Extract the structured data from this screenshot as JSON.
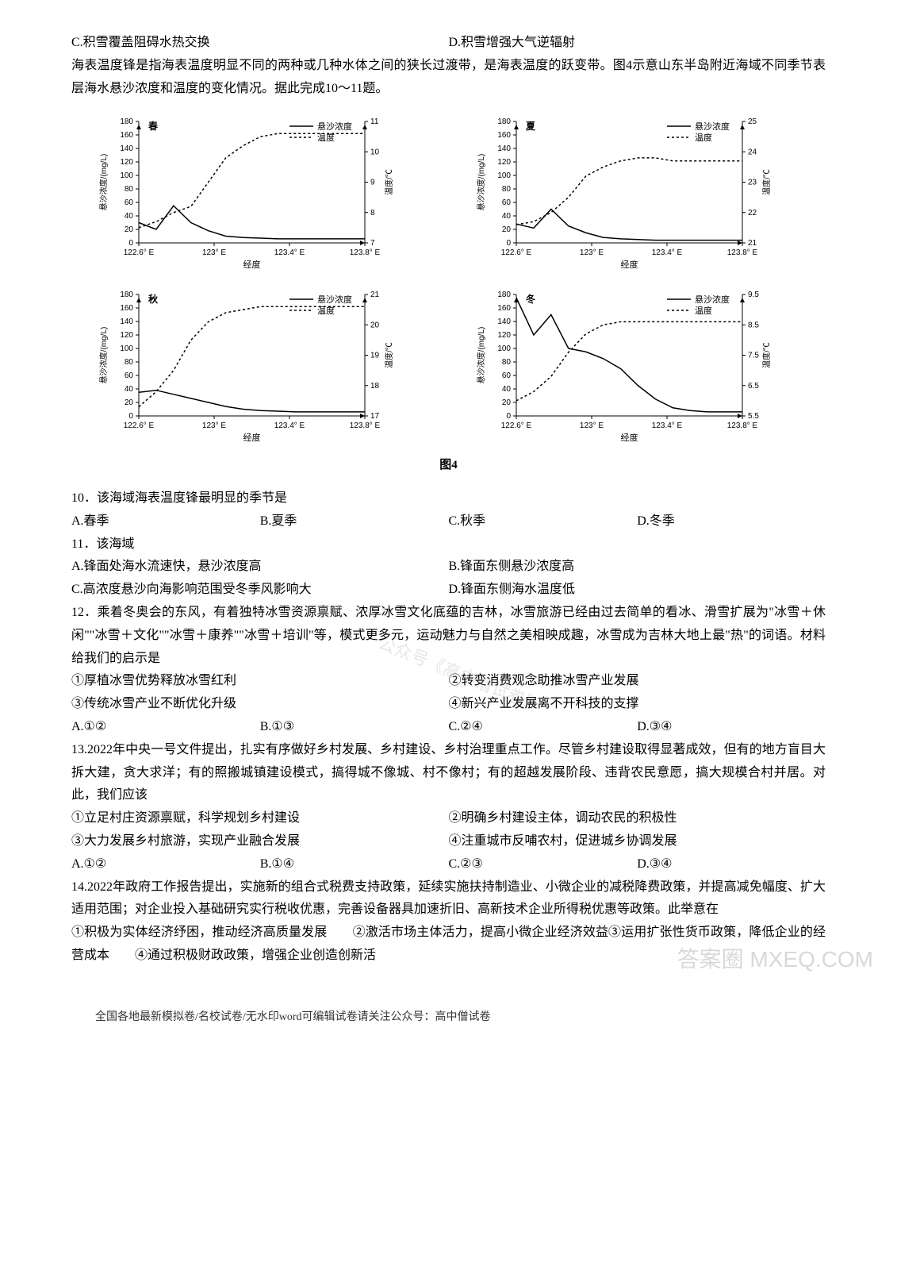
{
  "top_options": {
    "c": "C.积雪覆盖阻碍水热交换",
    "d": "D.积雪增强大气逆辐射"
  },
  "passage1": "海表温度锋是指海表温度明显不同的两种或几种水体之间的狭长过渡带，是海表温度的跃变带。图4示意山东半岛附近海域不同季节表层海水悬沙浓度和温度的变化情况。据此完成10～11题。",
  "charts": {
    "x_axis_label": "经度",
    "x_ticks": [
      "122.6° E",
      "123° E",
      "123.4° E",
      "123.8° E"
    ],
    "legend": {
      "susha": "悬沙浓度",
      "temp": "温度"
    },
    "y1_label": "悬沙浓度/(mg/L)",
    "y2_label": "温度/℃",
    "y1_ticks": [
      0,
      20,
      40,
      60,
      80,
      100,
      120,
      140,
      160,
      180
    ],
    "line_color": "#000000",
    "dash_pattern": "3,3",
    "line_width": 1.5,
    "background": "#ffffff",
    "panels": [
      {
        "season": "春",
        "y2_ticks": [
          7,
          8,
          9,
          10,
          11
        ],
        "y2_limits": [
          7,
          11
        ],
        "susha_values": [
          30,
          20,
          55,
          30,
          18,
          10,
          8,
          7,
          6,
          6,
          6,
          6,
          6,
          6
        ],
        "temp_values": [
          7.5,
          7.7,
          8.0,
          8.2,
          9.0,
          9.8,
          10.2,
          10.5,
          10.6,
          10.6,
          10.6,
          10.6,
          10.6,
          10.6
        ]
      },
      {
        "season": "夏",
        "y2_ticks": [
          21,
          22,
          23,
          24,
          25
        ],
        "y2_limits": [
          21,
          25
        ],
        "susha_values": [
          28,
          22,
          50,
          25,
          15,
          8,
          6,
          5,
          4,
          4,
          4,
          4,
          4,
          4
        ],
        "temp_values": [
          21.6,
          21.7,
          22.0,
          22.5,
          23.2,
          23.5,
          23.7,
          23.8,
          23.8,
          23.7,
          23.7,
          23.7,
          23.7,
          23.7
        ]
      },
      {
        "season": "秋",
        "y2_ticks": [
          17,
          18,
          19,
          20,
          21
        ],
        "y2_limits": [
          17,
          21
        ],
        "susha_values": [
          35,
          38,
          32,
          26,
          20,
          14,
          10,
          8,
          7,
          6,
          6,
          6,
          6,
          6
        ],
        "temp_values": [
          17.3,
          17.8,
          18.5,
          19.5,
          20.1,
          20.4,
          20.5,
          20.6,
          20.6,
          20.6,
          20.6,
          20.6,
          20.6,
          20.6
        ]
      },
      {
        "season": "冬",
        "y2_ticks": [
          5.5,
          6.5,
          7.5,
          8.5,
          9.5
        ],
        "y2_limits": [
          5.5,
          9.5
        ],
        "susha_values": [
          175,
          120,
          150,
          100,
          95,
          85,
          70,
          45,
          25,
          12,
          8,
          6,
          6,
          6
        ],
        "temp_values": [
          6.0,
          6.3,
          6.8,
          7.6,
          8.2,
          8.5,
          8.6,
          8.6,
          8.6,
          8.6,
          8.6,
          8.6,
          8.6,
          8.6
        ]
      }
    ]
  },
  "figure_caption": "图4",
  "q10": {
    "stem": "10．该海域海表温度锋最明显的季节是",
    "a": "A.春季",
    "b": "B.夏季",
    "c": "C.秋季",
    "d": "D.冬季"
  },
  "q11": {
    "stem": "11．该海域",
    "a": "A.锋面处海水流速快，悬沙浓度高",
    "b": "B.锋面东侧悬沙浓度高",
    "c": "C.高浓度悬沙向海影响范围受冬季风影响大",
    "d": "D.锋面东侧海水温度低"
  },
  "q12": {
    "stem": "12．乘着冬奥会的东风，有着独特冰雪资源禀赋、浓厚冰雪文化底蕴的吉林，冰雪旅游已经由过去简单的看冰、滑雪扩展为\"冰雪＋休闲\"\"冰雪＋文化\"\"冰雪＋康养\"\"冰雪＋培训\"等，模式更多元，运动魅力与自然之美相映成趣，冰雪成为吉林大地上最\"热\"的词语。材料给我们的启示是",
    "s1": "①厚植冰雪优势释放冰雪红利",
    "s2": "②转变消费观念助推冰雪产业发展",
    "s3": "③传统冰雪产业不断优化升级",
    "s4": "④新兴产业发展离不开科技的支撑",
    "a": "A.①②",
    "b": "B.①③",
    "c": "C.②④",
    "d": "D.③④"
  },
  "q13": {
    "stem": "13.2022年中央一号文件提出，扎实有序做好乡村发展、乡村建设、乡村治理重点工作。尽管乡村建设取得显著成效，但有的地方盲目大拆大建，贪大求洋；有的照搬城镇建设模式，搞得城不像城、村不像村；有的超越发展阶段、违背农民意愿，搞大规模合村并居。对此，我们应该",
    "s1": "①立足村庄资源禀赋，科学规划乡村建设",
    "s2": "②明确乡村建设主体，调动农民的积极性",
    "s3": "③大力发展乡村旅游，实现产业融合发展",
    "s4": "④注重城市反哺农村，促进城乡协调发展",
    "a": "A.①②",
    "b": "B.①④",
    "c": "C.②③",
    "d": "D.③④"
  },
  "q14": {
    "stem": "14.2022年政府工作报告提出，实施新的组合式税费支持政策，延续实施扶持制造业、小微企业的减税降费政策，并提高减免幅度、扩大适用范围；对企业投入基础研究实行税收优惠，完善设备器具加速折旧、高新技术企业所得税优惠等政策。此举意在",
    "line": "①积极为实体经济纾困，推动经济高质量发展　　②激活市场主体活力，提高小微企业经济效益③运用扩张性货币政策，降低企业的经营成本　　④通过积极财政政策，增强企业创造创新活"
  },
  "footer": "全国各地最新模拟卷/名校试卷/无水印word可编辑试卷请关注公众号：高中僧试卷",
  "watermark_corner": "答案圈\nMXEQ.COM",
  "watermark_center": "公众号《高中僧试卷》"
}
